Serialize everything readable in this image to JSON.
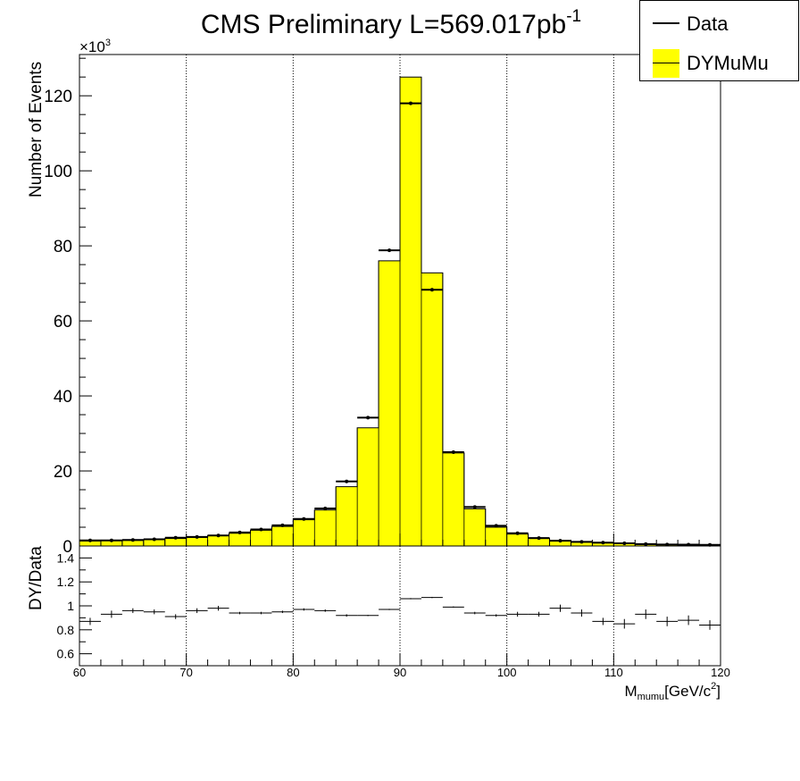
{
  "chart_data": {
    "type": "histogram",
    "title_main": "CMS Preliminary L=569.017pb",
    "title_sup": "-1",
    "upper": {
      "ylabel": "Number of Events",
      "exponent_label": "×10",
      "exponent_sup": "3",
      "ylim": [
        0,
        131
      ],
      "yticks": [
        0,
        20,
        40,
        60,
        80,
        100,
        120
      ],
      "yticklabels": [
        "0",
        "20",
        "40",
        "60",
        "80",
        "100",
        "120"
      ],
      "bin_edges": [
        60,
        62,
        64,
        66,
        68,
        70,
        72,
        74,
        76,
        78,
        80,
        82,
        84,
        86,
        88,
        90,
        92,
        94,
        96,
        98,
        100,
        102,
        104,
        106,
        108,
        110,
        112,
        114,
        116,
        118,
        120
      ],
      "series": [
        {
          "name": "DYMuMu",
          "color": "#ffff00",
          "values": [
            1.3,
            1.4,
            1.5,
            1.7,
            2.0,
            2.3,
            2.8,
            3.4,
            4.2,
            5.2,
            7.0,
            9.6,
            15.8,
            31.5,
            76.0,
            125.0,
            72.8,
            24.8,
            9.9,
            5.0,
            3.2,
            2.0,
            1.4,
            1.0,
            0.8,
            0.6,
            0.45,
            0.35,
            0.3,
            0.25
          ]
        },
        {
          "name": "Data",
          "color": "#000000",
          "values": [
            1.5,
            1.5,
            1.6,
            1.8,
            2.2,
            2.4,
            2.8,
            3.6,
            4.4,
            5.5,
            7.2,
            10.0,
            17.2,
            34.2,
            78.8,
            118.0,
            68.3,
            25.0,
            10.4,
            5.4,
            3.4,
            2.1,
            1.4,
            1.1,
            0.9,
            0.7,
            0.5,
            0.4,
            0.35,
            0.3
          ]
        }
      ]
    },
    "lower": {
      "ylabel": "DY/Data",
      "ylim": [
        0.5,
        1.5
      ],
      "yticks": [
        0.6,
        0.8,
        1.0,
        1.2,
        1.4
      ],
      "yticklabels": [
        "0.6",
        "0.8",
        "1",
        "1.2",
        "1.4"
      ],
      "ratio_values": [
        0.87,
        0.93,
        0.96,
        0.95,
        0.91,
        0.96,
        0.98,
        0.94,
        0.94,
        0.95,
        0.97,
        0.96,
        0.92,
        0.92,
        0.97,
        1.06,
        1.07,
        0.99,
        0.94,
        0.92,
        0.93,
        0.93,
        0.98,
        0.94,
        0.87,
        0.85,
        0.93,
        0.87,
        0.88,
        0.84
      ],
      "ratio_errors": [
        0.03,
        0.03,
        0.02,
        0.02,
        0.02,
        0.02,
        0.02,
        0.01,
        0.01,
        0.01,
        0.01,
        0.01,
        0.01,
        0.005,
        0.005,
        0.005,
        0.005,
        0.005,
        0.01,
        0.01,
        0.02,
        0.02,
        0.03,
        0.03,
        0.03,
        0.04,
        0.04,
        0.04,
        0.04,
        0.04
      ]
    },
    "x": {
      "label_main": "M",
      "label_sub": "mumu",
      "label_rest": "[GeV/c",
      "label_sup": "2",
      "label_end": "]",
      "xlim": [
        60,
        120
      ],
      "ticks": [
        60,
        70,
        80,
        90,
        100,
        110,
        120
      ],
      "ticklabels": [
        "60",
        "70",
        "80",
        "90",
        "100",
        "110",
        "120"
      ]
    },
    "grid": "vertical-dotted",
    "legend_position": "top-right"
  },
  "legend": {
    "items": [
      {
        "label": "Data",
        "symbol": "line"
      },
      {
        "label": "DYMuMu",
        "symbol": "fill"
      }
    ]
  }
}
